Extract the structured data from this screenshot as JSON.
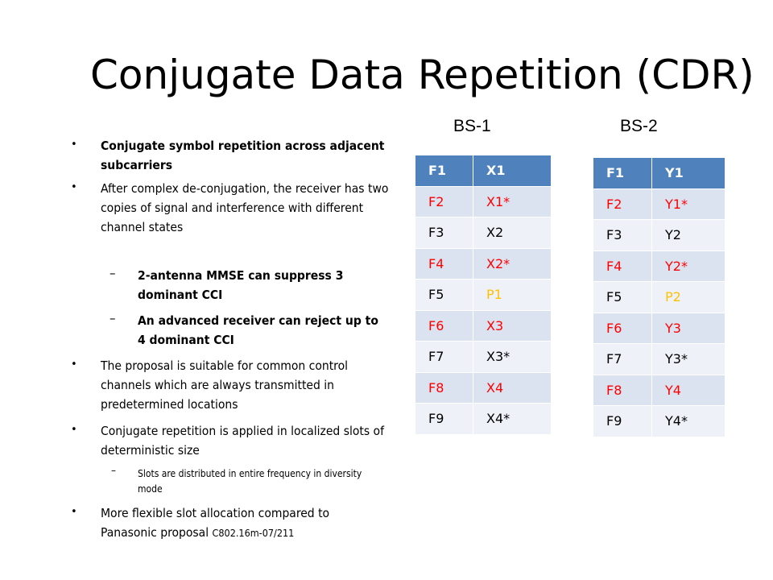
{
  "slide": {
    "title": "Conjugate Data Repetition (CDR)",
    "bs_labels": [
      "BS-1",
      "BS-2"
    ]
  },
  "bullets": [
    {
      "text": "Conjugate symbol repetition across adjacent subcarriers",
      "level": 1,
      "bold": true
    },
    {
      "text": "After complex de-conjugation, the receiver has two copies of signal and interference with different channel states",
      "level": 1
    },
    {
      "text": "2-antenna MMSE can suppress 3 dominant CCI",
      "level": 2,
      "bold": true
    },
    {
      "text": "An advanced receiver can reject up to 4 dominant CCI",
      "level": 2,
      "bold": true
    },
    {
      "text": "The proposal is suitable for common control channels which are always transmitted in predetermined locations",
      "level": 1
    },
    {
      "text": "Conjugate repetition is applied in localized slots of deterministic size",
      "level": 1
    },
    {
      "text": "Slots are distributed in entire frequency in diversity mode",
      "level": 3
    },
    {
      "text": "More flexible slot allocation compared to Panasonic proposal",
      "ref": "C802.16m-07/211",
      "level": 1
    }
  ],
  "colors": {
    "header": "#4f81bd",
    "row_dark": "#dbe3f1",
    "row_light": "#eef2f8",
    "red_text": "#ff0000",
    "yellow_text": "#ffc000"
  },
  "tables": [
    {
      "name": "BS-1",
      "rows": [
        [
          "F1",
          "X1"
        ],
        [
          "F2",
          "X1*"
        ],
        [
          "F3",
          "X2"
        ],
        [
          "F4",
          "X2*"
        ],
        [
          "F5",
          "P1"
        ],
        [
          "F6",
          "X3"
        ],
        [
          "F7",
          "X3*"
        ],
        [
          "F8",
          "X4"
        ],
        [
          "F9",
          "X4*"
        ]
      ]
    },
    {
      "name": "BS-2",
      "rows": [
        [
          "F1",
          "Y1"
        ],
        [
          "F2",
          "Y1*"
        ],
        [
          "F3",
          "Y2"
        ],
        [
          "F4",
          "Y2*"
        ],
        [
          "F5",
          "P2"
        ],
        [
          "F6",
          "Y3"
        ],
        [
          "F7",
          "Y3*"
        ],
        [
          "F8",
          "Y4"
        ],
        [
          "F9",
          "Y4*"
        ]
      ]
    }
  ]
}
